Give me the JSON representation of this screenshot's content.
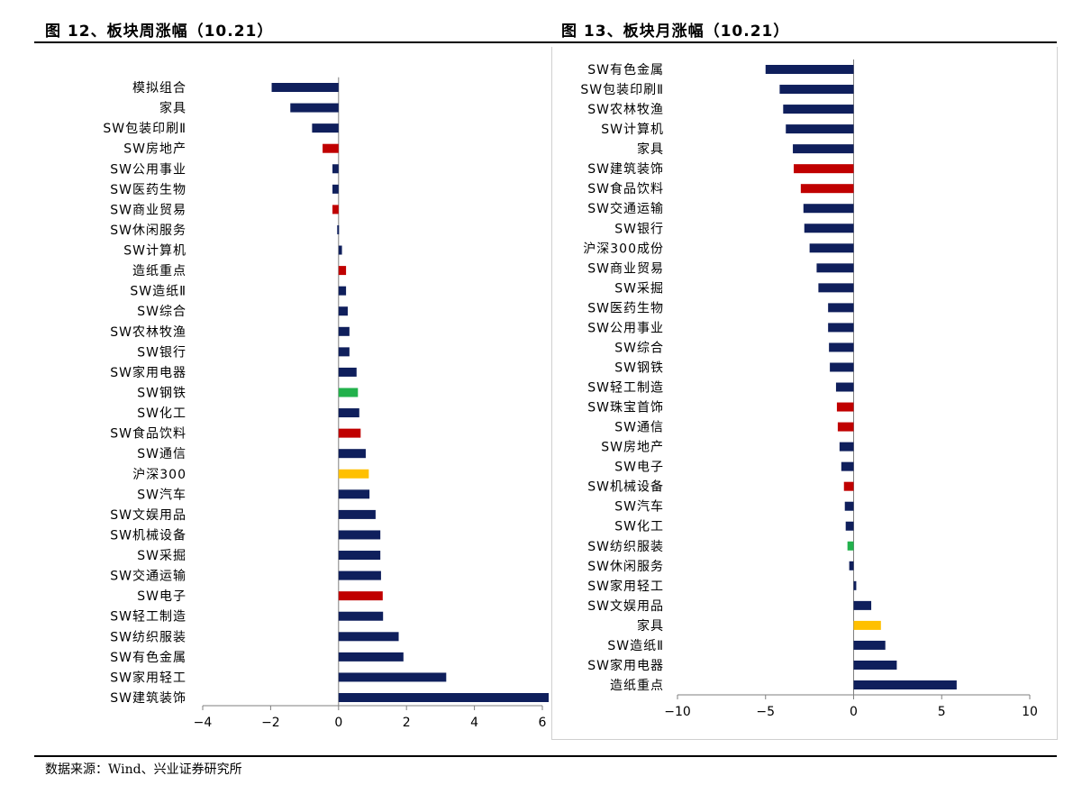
{
  "source_note": "数据来源：Wind、兴业证券研究所",
  "chart_data": [
    {
      "type": "bar",
      "orientation": "horizontal",
      "title": "图 12、板块周涨幅（10.21）",
      "xlim": [
        -4,
        6
      ],
      "xticks": [
        -4,
        -2,
        0,
        2,
        4,
        6
      ],
      "grid": false,
      "categories": [
        "模拟组合",
        "家具",
        "SW包装印刷Ⅱ",
        "SW房地产",
        "SW公用事业",
        "SW医药生物",
        "SW商业贸易",
        "SW休闲服务",
        "SW计算机",
        "造纸重点",
        "SW造纸Ⅱ",
        "SW综合",
        "SW农林牧渔",
        "SW银行",
        "SW家用电器",
        "SW钢铁",
        "SW化工",
        "SW食品饮料",
        "SW通信",
        "沪深300",
        "SW汽车",
        "SW文娱用品",
        "SW机械设备",
        "SW采掘",
        "SW交通运输",
        "SW电子",
        "SW轻工制造",
        "SW纺织服装",
        "SW有色金属",
        "SW家用轻工",
        "SW建筑装饰"
      ],
      "values": [
        -1.97,
        -1.42,
        -0.78,
        -0.47,
        -0.18,
        -0.18,
        -0.18,
        -0.04,
        0.1,
        0.22,
        0.22,
        0.27,
        0.32,
        0.32,
        0.53,
        0.57,
        0.61,
        0.65,
        0.8,
        0.89,
        0.91,
        1.09,
        1.23,
        1.23,
        1.25,
        1.3,
        1.31,
        1.77,
        1.91,
        3.17,
        6.3
      ],
      "bar_colors": [
        "#0f1f5c",
        "#0f1f5c",
        "#0f1f5c",
        "#c00000",
        "#0f1f5c",
        "#0f1f5c",
        "#c00000",
        "#0f1f5c",
        "#0f1f5c",
        "#c00000",
        "#0f1f5c",
        "#0f1f5c",
        "#0f1f5c",
        "#0f1f5c",
        "#0f1f5c",
        "#22b14c",
        "#0f1f5c",
        "#c00000",
        "#0f1f5c",
        "#ffc000",
        "#0f1f5c",
        "#0f1f5c",
        "#0f1f5c",
        "#0f1f5c",
        "#0f1f5c",
        "#c00000",
        "#0f1f5c",
        "#0f1f5c",
        "#0f1f5c",
        "#0f1f5c",
        "#0f1f5c"
      ]
    },
    {
      "type": "bar",
      "orientation": "horizontal",
      "title": "图 13、板块月涨幅（10.21）",
      "xlim": [
        -10,
        10
      ],
      "xticks": [
        -10,
        -5,
        0,
        5,
        10
      ],
      "grid": false,
      "categories": [
        "SW有色金属",
        "SW包装印刷Ⅱ",
        "SW农林牧渔",
        "SW计算机",
        "家具",
        "SW建筑装饰",
        "SW食品饮料",
        "SW交通运输",
        "SW银行",
        "沪深300成份",
        "SW商业贸易",
        "SW采掘",
        "SW医药生物",
        "SW公用事业",
        "SW综合",
        "SW钢铁",
        "SW轻工制造",
        "SW珠宝首饰",
        "SW通信",
        "SW房地产",
        "SW电子",
        "SW机械设备",
        "SW汽车",
        "SW化工",
        "SW纺织服装",
        "SW休闲服务",
        "SW家用轻工",
        "SW文娱用品",
        "家具",
        "SW造纸Ⅱ",
        "SW家用电器",
        "造纸重点"
      ],
      "values": [
        -5.0,
        -4.2,
        -4.0,
        -3.85,
        -3.45,
        -3.4,
        -3.0,
        -2.85,
        -2.8,
        -2.5,
        -2.1,
        -2.0,
        -1.45,
        -1.45,
        -1.4,
        -1.35,
        -1.0,
        -0.95,
        -0.9,
        -0.8,
        -0.7,
        -0.55,
        -0.5,
        -0.45,
        -0.35,
        -0.25,
        0.15,
        1.0,
        1.55,
        1.8,
        2.45,
        5.85
      ],
      "bar_colors": [
        "#0f1f5c",
        "#0f1f5c",
        "#0f1f5c",
        "#0f1f5c",
        "#0f1f5c",
        "#c00000",
        "#c00000",
        "#0f1f5c",
        "#0f1f5c",
        "#0f1f5c",
        "#0f1f5c",
        "#0f1f5c",
        "#0f1f5c",
        "#0f1f5c",
        "#0f1f5c",
        "#0f1f5c",
        "#0f1f5c",
        "#c00000",
        "#c00000",
        "#0f1f5c",
        "#0f1f5c",
        "#c00000",
        "#0f1f5c",
        "#0f1f5c",
        "#22b14c",
        "#0f1f5c",
        "#0f1f5c",
        "#0f1f5c",
        "#ffc000",
        "#0f1f5c",
        "#0f1f5c",
        "#0f1f5c"
      ]
    }
  ]
}
